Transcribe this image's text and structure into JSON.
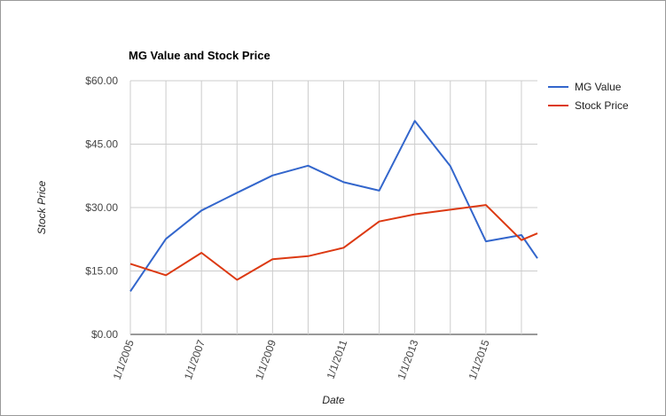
{
  "chart_data": {
    "type": "line",
    "title": "MG Value and Stock Price",
    "xlabel": "Date",
    "ylabel": "Stock Price",
    "x_tick_labels": [
      "1/1/2005",
      "1/1/2007",
      "1/1/2009",
      "1/1/2011",
      "1/1/2013",
      "1/1/2015"
    ],
    "x_tick_years": [
      2005,
      2007,
      2009,
      2011,
      2013,
      2015
    ],
    "y_tick_labels": [
      "$0.00",
      "$15.00",
      "$30.00",
      "$45.00",
      "$60.00"
    ],
    "y_tick_values": [
      0,
      15,
      30,
      45,
      60
    ],
    "ylim": [
      0,
      60
    ],
    "xlim": [
      2005,
      2016.45
    ],
    "grid": true,
    "legend_position": "right",
    "series": [
      {
        "name": "MG Value",
        "color": "#3366cc",
        "x": [
          2005,
          2006,
          2007,
          2008,
          2009,
          2010,
          2011,
          2012,
          2013,
          2014,
          2015,
          2016,
          2016.45
        ],
        "y": [
          10.2,
          22.6,
          29.3,
          33.5,
          37.6,
          39.9,
          36.0,
          34.0,
          50.5,
          39.8,
          22.0,
          23.5,
          18.0
        ]
      },
      {
        "name": "Stock Price",
        "color": "#dc3912",
        "x": [
          2005,
          2006,
          2007,
          2008,
          2009,
          2010,
          2011,
          2012,
          2013,
          2014,
          2015,
          2016,
          2016.45
        ],
        "y": [
          16.7,
          14.0,
          19.3,
          12.9,
          17.8,
          18.5,
          20.5,
          26.7,
          28.4,
          29.5,
          30.6,
          22.3,
          23.9
        ]
      }
    ]
  }
}
